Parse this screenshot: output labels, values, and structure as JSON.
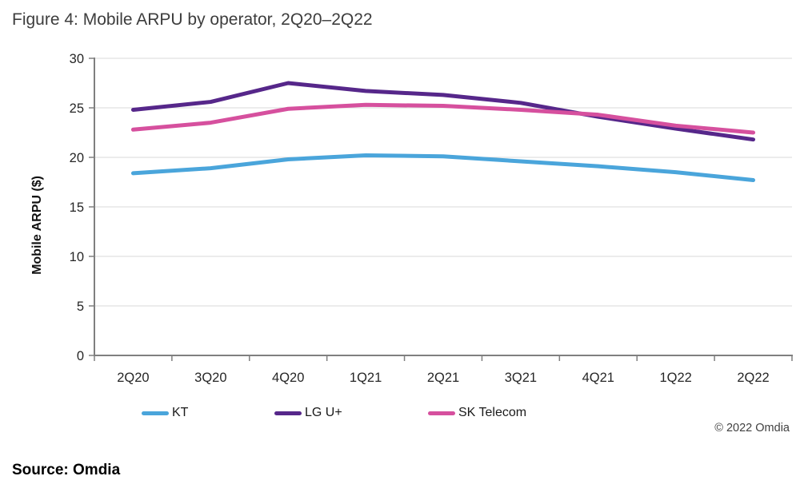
{
  "title": "Figure 4: Mobile ARPU by operator, 2Q20–2Q22",
  "source_line": "Source: Omdia",
  "copyright": "© 2022 Omdia",
  "chart_data": {
    "type": "line",
    "title": "Figure 4: Mobile ARPU by operator, 2Q20–2Q22",
    "categories": [
      "2Q20",
      "3Q20",
      "4Q20",
      "1Q21",
      "2Q21",
      "3Q21",
      "4Q21",
      "1Q22",
      "2Q22"
    ],
    "series": [
      {
        "name": "KT",
        "color": "#4aa5db",
        "values": [
          18.4,
          18.9,
          19.8,
          20.2,
          20.1,
          19.6,
          19.1,
          18.5,
          17.7
        ]
      },
      {
        "name": "LG U+",
        "color": "#56278a",
        "values": [
          24.8,
          25.6,
          27.5,
          26.7,
          26.3,
          25.5,
          24.1,
          22.9,
          21.8
        ]
      },
      {
        "name": "SK Telecom",
        "color": "#d6509e",
        "values": [
          22.8,
          23.5,
          24.9,
          25.3,
          25.2,
          24.8,
          24.3,
          23.2,
          22.5
        ]
      }
    ],
    "xlabel": "",
    "ylabel": "Mobile ARPU ($)",
    "ylim": [
      0,
      30
    ],
    "yticks": [
      0,
      5,
      10,
      15,
      20,
      25,
      30
    ],
    "grid": true,
    "legend_position": "bottom"
  },
  "style": {
    "grid_color": "#d9d9d9",
    "axis_color": "#7f7f7f",
    "tick_label_color": "#262626"
  }
}
